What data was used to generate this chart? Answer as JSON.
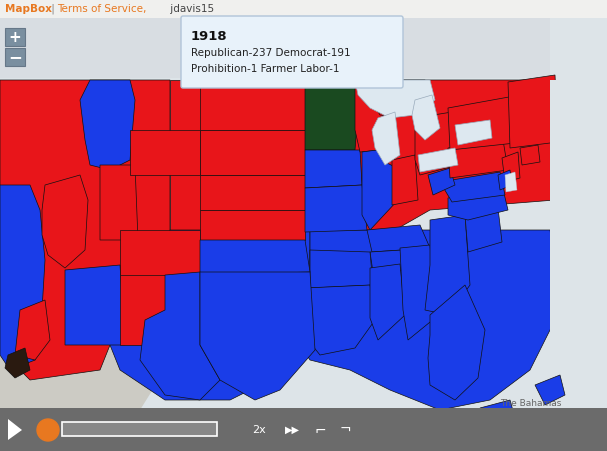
{
  "title": "1918",
  "subtitle_line1": "Republican-237 Democrat-191",
  "subtitle_line2": "Prohibition-1 Farmer Labor-1",
  "mapbox_text": "MapBox",
  "terms_text": " | Terms of Service,",
  "user_text": " jdavis15",
  "bahamas_text": "The Bahamas",
  "bg_color": "#d0d5d8",
  "map_light": "#dde4e8",
  "toolbar_color": "#6b6b6b",
  "tooltip_bg": "#e8f2fa",
  "tooltip_border": "#b0c4d8",
  "red": "#e8151a",
  "blue": "#1a3de8",
  "dark_green": "#1a4a20",
  "dark_brown": "#2a1a10",
  "water": "#dde8f0",
  "mapbox_orange": "#e87820",
  "canada_gray": "#d8dde2",
  "mexico_gray": "#cccbc4",
  "ocean_gray": "#dce3e8",
  "top_bar": "#f0f0ee",
  "plus_bg": "#7a8fa0",
  "figw": 6.07,
  "figh": 4.51,
  "dpi": 100
}
